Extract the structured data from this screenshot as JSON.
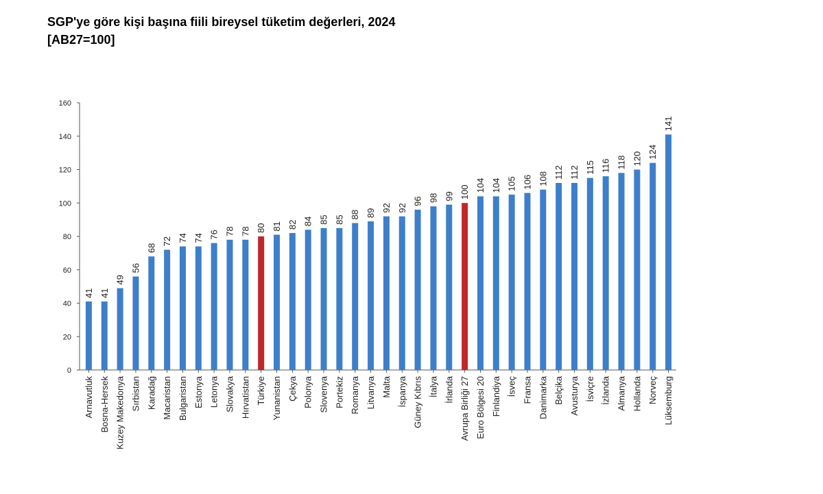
{
  "title": {
    "line1": "SGP'ye göre kişi başına fiili bireysel tüketim değerleri, 2024",
    "line2": "[AB27=100]"
  },
  "colors": {
    "bar": "#3d7fcb",
    "highlight": "#c0262a",
    "axis": "#555555"
  },
  "chart_data": {
    "type": "bar",
    "title": "SGP'ye göre kişi başına fiili bireysel tüketim değerleri, 2024",
    "subtitle": "[AB27=100]",
    "xlabel": "",
    "ylabel": "",
    "ylim": [
      0,
      160
    ],
    "yticks": [
      0,
      20,
      40,
      60,
      80,
      100,
      120,
      140,
      160
    ],
    "grid": false,
    "categories": [
      "Arnavutluk",
      "Bosna-Hersek",
      "Kuzey Makedonya",
      "Sırbistan",
      "Karadağ",
      "Macaristan",
      "Bulgaristan",
      "Estonya",
      "Letonya",
      "Slovakya",
      "Hırvatistan",
      "Türkiye",
      "Yunanistan",
      "Çekya",
      "Polonya",
      "Slovenya",
      "Portekiz",
      "Romanya",
      "Litvanya",
      "Malta",
      "İspanya",
      "Güney Kıbrıs",
      "İtalya",
      "İrlanda",
      "Avrupa Birliği 27",
      "Euro Bölgesi 20",
      "Finlandiya",
      "İsveç",
      "Fransa",
      "Danimarka",
      "Belçika",
      "Avusturya",
      "İsviçre",
      "İzlanda",
      "Almanya",
      "Hollanda",
      "Norveç",
      "Lüksemburg"
    ],
    "values": [
      41,
      41,
      49,
      56,
      68,
      72,
      74,
      74,
      76,
      78,
      78,
      80,
      81,
      82,
      84,
      85,
      85,
      88,
      89,
      92,
      92,
      96,
      98,
      99,
      100,
      104,
      104,
      105,
      106,
      108,
      112,
      112,
      115,
      116,
      118,
      120,
      124,
      141
    ],
    "highlighted": [
      "Türkiye",
      "Avrupa Birliği 27"
    ]
  }
}
